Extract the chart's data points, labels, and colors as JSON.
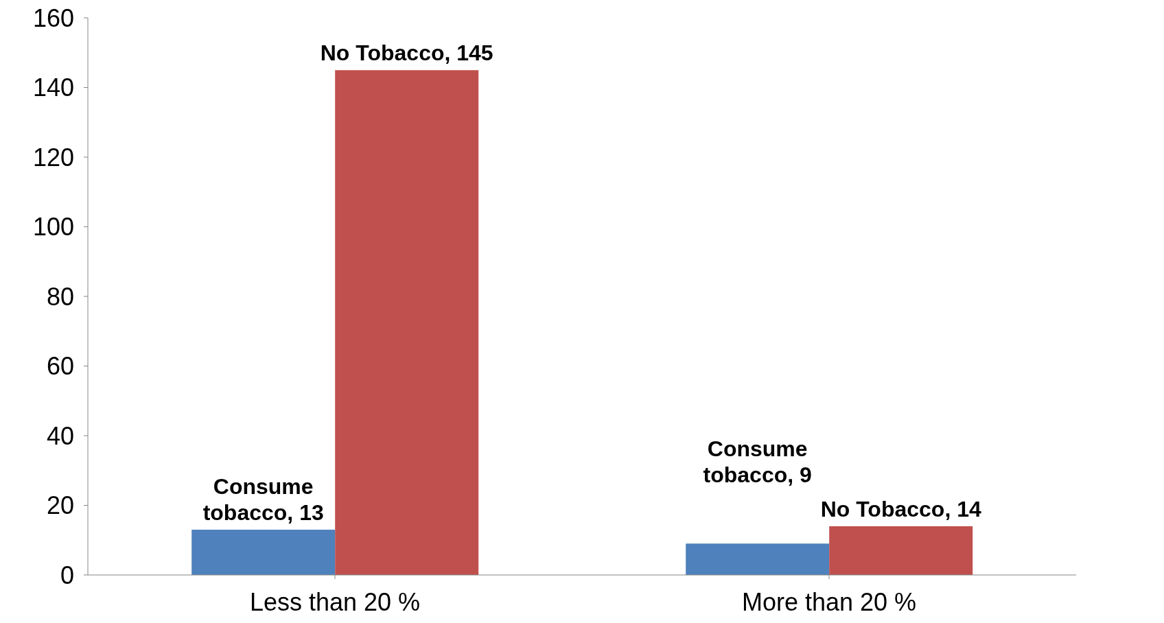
{
  "chart_data": {
    "type": "bar",
    "categories": [
      "Less than 20 %",
      "More than 20 %"
    ],
    "series": [
      {
        "color": "#4f81bd",
        "values": [
          13,
          9
        ],
        "value_labels": [
          "Consume tobacco, 13",
          "Consume tobacco, 9"
        ]
      },
      {
        "color": "#c0504d",
        "values": [
          145,
          14
        ],
        "value_labels": [
          "No Tobacco, 145",
          "No Tobacco, 14"
        ]
      }
    ],
    "ylim": [
      0,
      160
    ],
    "yticks": [
      0,
      20,
      40,
      60,
      80,
      100,
      120,
      140,
      160
    ],
    "grid": false,
    "legend": false
  }
}
